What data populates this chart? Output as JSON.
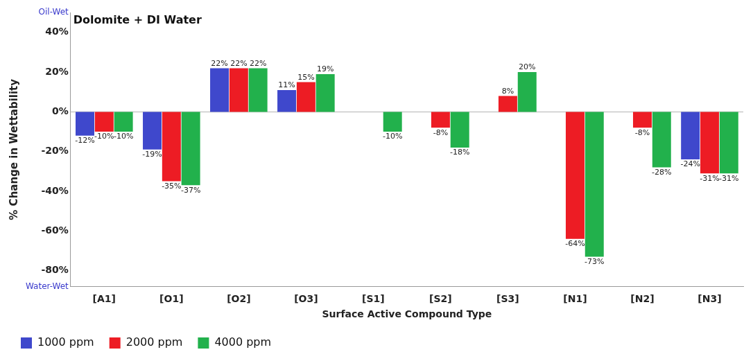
{
  "chart_data": {
    "type": "bar",
    "title": "Dolomite + DI Water",
    "xlabel": "Surface Active Compound Type",
    "ylabel": "% Change in Wettability",
    "categories": [
      "[A1]",
      "[O1]",
      "[O2]",
      "[O3]",
      "[S1]",
      "[S2]",
      "[S3]",
      "[N1]",
      "[N2]",
      "[N3]"
    ],
    "series": [
      {
        "name": "1000 ppm",
        "color": "#3f48cc",
        "values": [
          -12,
          -19,
          22,
          11,
          null,
          null,
          null,
          null,
          null,
          -24
        ],
        "value_labels": [
          "-12%",
          "-19%",
          "22%",
          "11%",
          null,
          null,
          null,
          null,
          null,
          "-24%"
        ]
      },
      {
        "name": "2000 ppm",
        "color": "#ed1c24",
        "values": [
          -10,
          -35,
          22,
          15,
          null,
          -8,
          8,
          -64,
          -8,
          -31
        ],
        "value_labels": [
          "-10%",
          "-35%",
          "22%",
          "15%",
          null,
          "-8%",
          "8%",
          "-64%",
          "-8%",
          "-31%"
        ]
      },
      {
        "name": "4000 ppm",
        "color": "#22b14c",
        "values": [
          -10,
          -37,
          22,
          19,
          -10,
          -18,
          20,
          -73,
          -28,
          -31
        ],
        "value_labels": [
          "-10%",
          "-37%",
          "22%",
          "19%",
          "-10%",
          "-18%",
          "20%",
          "-73%",
          "-28%",
          "-31%"
        ]
      }
    ],
    "ylim": [
      -88,
      50
    ],
    "yticks": [
      {
        "value": 50,
        "label": "Oil-Wet"
      },
      {
        "value": 40,
        "label": "40%"
      },
      {
        "value": 20,
        "label": "20%"
      },
      {
        "value": 0,
        "label": "0%"
      },
      {
        "value": -20,
        "label": "-20%"
      },
      {
        "value": -40,
        "label": "-40%"
      },
      {
        "value": -60,
        "label": "-60%"
      },
      {
        "value": -80,
        "label": "-80%"
      },
      {
        "value": -88,
        "label": "Water-Wet"
      }
    ],
    "ref_lines": [
      {
        "axis": "y",
        "value": 0,
        "color": "#c8c8c8"
      }
    ],
    "legend": "bottom left"
  }
}
